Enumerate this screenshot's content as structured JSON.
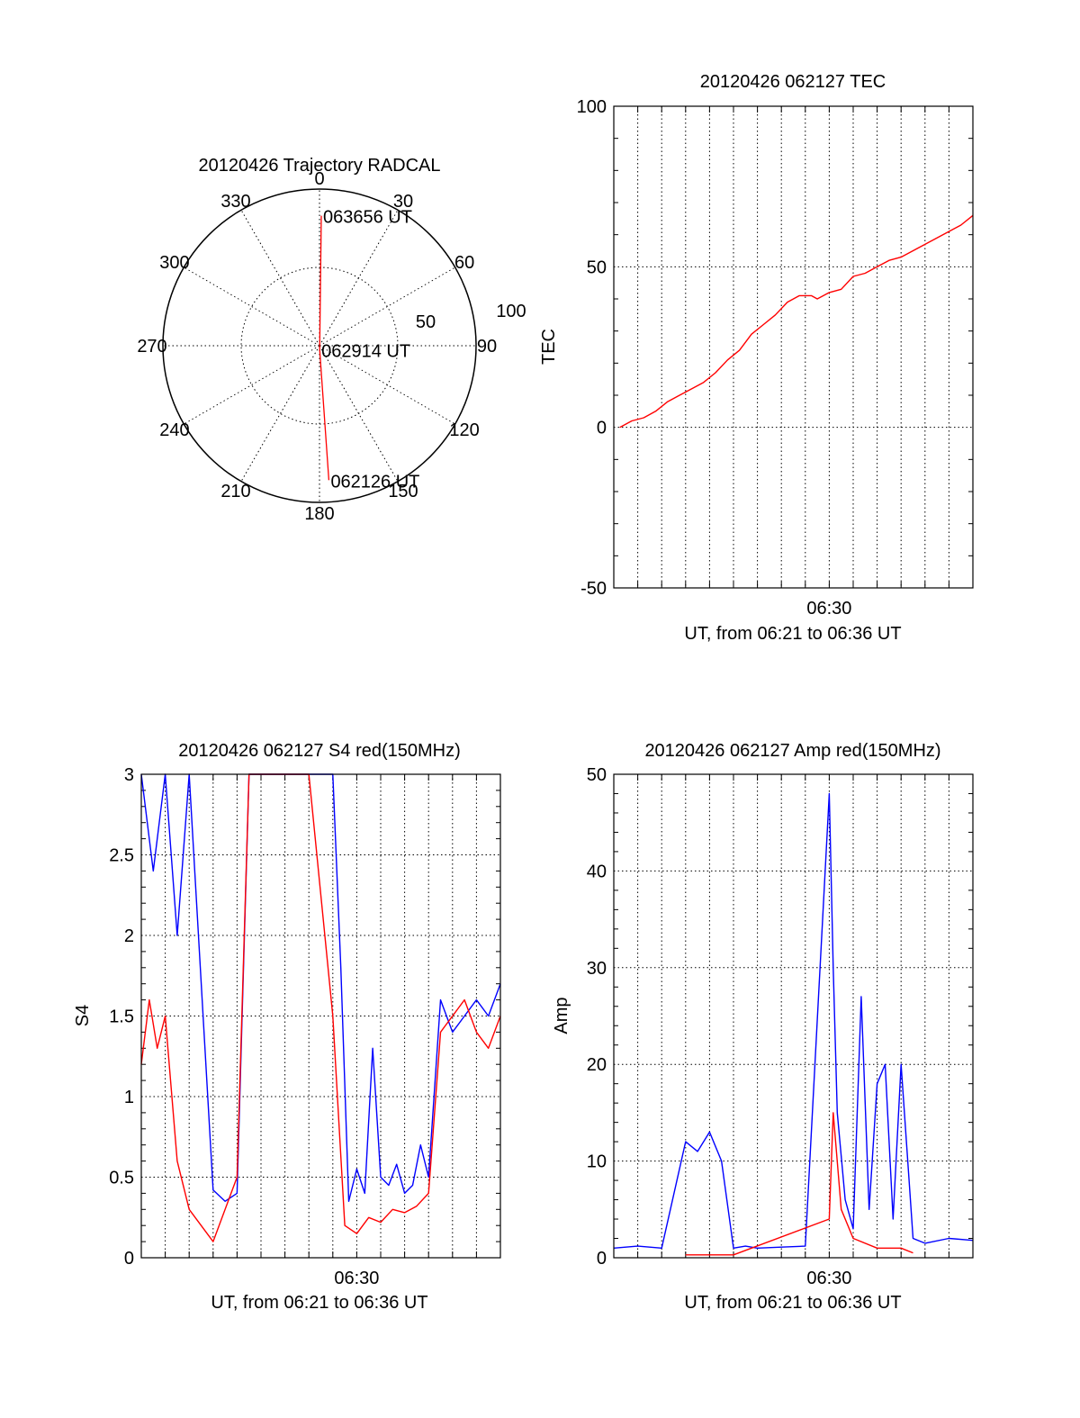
{
  "chart_data": [
    {
      "type": "polar",
      "title": "20120426 Trajectory RADCAL",
      "angle_labels": [
        "0",
        "30",
        "60",
        "90",
        "120",
        "150",
        "180",
        "210",
        "240",
        "270",
        "300",
        "330"
      ],
      "radial_labels": [
        "50",
        "100"
      ],
      "rlim": [
        0,
        100
      ],
      "grid": true,
      "series": [
        {
          "color": "#ff0000",
          "points": [
            {
              "az": 0.8,
              "r": 83
            },
            {
              "az": 178.0,
              "r": 2.5
            },
            {
              "az": 176.0,
              "r": 86
            }
          ]
        }
      ],
      "annotations": [
        {
          "text": "063656 UT",
          "az": 0.8,
          "r": 83
        },
        {
          "text": "062914 UT",
          "az": 178.0,
          "r": 2.5
        },
        {
          "text": "062126 UT",
          "az": 176.0,
          "r": 86
        }
      ]
    },
    {
      "type": "line",
      "title": "20120426 062127 TEC",
      "xlabel": "UT, from 06:21 to 06:36 UT",
      "ylabel": "TEC",
      "xlim": [
        "06:21",
        "06:36"
      ],
      "ylim": [
        -50,
        100
      ],
      "xticks": [
        {
          "x": "06:30",
          "label": "06:30"
        }
      ],
      "yticks": [
        "-50",
        "0",
        "50",
        "100"
      ],
      "grid": true,
      "series": [
        {
          "color": "#ff0000",
          "x": [
            "06:21:15",
            "06:21:45",
            "06:22:15",
            "06:22:45",
            "06:23:15",
            "06:23:45",
            "06:24:15",
            "06:24:45",
            "06:25:15",
            "06:25:45",
            "06:26:15",
            "06:26:45",
            "06:27:15",
            "06:27:45",
            "06:28:15",
            "06:28:45",
            "06:29:15",
            "06:29:30",
            "06:30:00",
            "06:30:30",
            "06:31:00",
            "06:31:30",
            "06:32:00",
            "06:32:30",
            "06:33:00",
            "06:33:30",
            "06:34:00",
            "06:34:30",
            "06:35:00",
            "06:35:30",
            "06:36:00"
          ],
          "y": [
            0,
            2,
            3,
            5,
            8,
            10,
            12,
            14,
            17,
            21,
            24,
            29,
            32,
            35,
            39,
            41,
            41,
            40,
            42,
            43,
            47,
            48,
            50,
            52,
            53,
            55,
            57,
            59,
            61,
            63,
            66
          ]
        }
      ]
    },
    {
      "type": "line",
      "title": "20120426 062127 S4 red(150MHz)",
      "xlabel": "UT, from 06:21 to 06:36 UT",
      "ylabel": "S4",
      "xlim": [
        "06:21",
        "06:36"
      ],
      "ylim": [
        0,
        3
      ],
      "xticks": [
        {
          "x": "06:30",
          "label": "06:30"
        }
      ],
      "yticks": [
        "0",
        "0.5",
        "1",
        "1.5",
        "2",
        "2.5",
        "3"
      ],
      "grid": true,
      "series": [
        {
          "color": "#0000ff",
          "x": [
            "06:21:00",
            "06:21:30",
            "06:22:00",
            "06:22:30",
            "06:23:00",
            "06:24:00",
            "06:24:30",
            "06:25:00",
            "06:25:30",
            "06:26:00",
            "06:27:00",
            "06:28:00",
            "06:29:00",
            "06:29:20",
            "06:29:40",
            "06:30:00",
            "06:30:20",
            "06:30:40",
            "06:31:00",
            "06:31:20",
            "06:31:40",
            "06:32:00",
            "06:32:20",
            "06:32:40",
            "06:33:00",
            "06:33:30",
            "06:34:00",
            "06:34:30",
            "06:35:00",
            "06:35:30",
            "06:36:00"
          ],
          "y": [
            3,
            2.4,
            3,
            2.0,
            3,
            0.42,
            0.35,
            0.4,
            3,
            3,
            3,
            3,
            3,
            1.8,
            0.35,
            0.55,
            0.4,
            1.3,
            0.5,
            0.45,
            0.58,
            0.4,
            0.45,
            0.7,
            0.5,
            1.6,
            1.4,
            1.5,
            1.6,
            1.5,
            1.7
          ]
        },
        {
          "color": "#ff0000",
          "x": [
            "06:21:00",
            "06:21:20",
            "06:21:40",
            "06:22:00",
            "06:22:30",
            "06:23:00",
            "06:24:00",
            "06:25:00",
            "06:25:30",
            "06:26:00",
            "06:27:00",
            "06:28:00",
            "06:29:00",
            "06:29:30",
            "06:30:00",
            "06:30:30",
            "06:31:00",
            "06:31:30",
            "06:32:00",
            "06:32:30",
            "06:33:00",
            "06:33:30",
            "06:34:00",
            "06:34:30",
            "06:35:00",
            "06:35:30",
            "06:36:00"
          ],
          "y": [
            1.2,
            1.6,
            1.3,
            1.5,
            0.6,
            0.3,
            0.1,
            0.5,
            3,
            3,
            3,
            3,
            1.5,
            0.2,
            0.15,
            0.25,
            0.22,
            0.3,
            0.28,
            0.32,
            0.4,
            1.4,
            1.5,
            1.6,
            1.4,
            1.3,
            1.5
          ]
        }
      ]
    },
    {
      "type": "line",
      "title": "20120426 062127 Amp red(150MHz)",
      "xlabel": "UT, from 06:21 to 06:36 UT",
      "ylabel": "Amp",
      "xlim": [
        "06:21",
        "06:36"
      ],
      "ylim": [
        0,
        50
      ],
      "xticks": [
        {
          "x": "06:30",
          "label": "06:30"
        }
      ],
      "yticks": [
        "0",
        "10",
        "20",
        "30",
        "40",
        "50"
      ],
      "grid": true,
      "series": [
        {
          "color": "#0000ff",
          "x": [
            "06:21:00",
            "06:22:00",
            "06:23:00",
            "06:24:00",
            "06:24:30",
            "06:25:00",
            "06:25:30",
            "06:26:00",
            "06:26:30",
            "06:27:00",
            "06:28:00",
            "06:29:00",
            "06:30:00",
            "06:30:10",
            "06:30:20",
            "06:30:40",
            "06:31:00",
            "06:31:20",
            "06:31:40",
            "06:32:00",
            "06:32:20",
            "06:32:40",
            "06:33:00",
            "06:33:20",
            "06:33:30",
            "06:34:00",
            "06:35:00",
            "06:36:00"
          ],
          "y": [
            1,
            1.2,
            1.0,
            12,
            11,
            13,
            10,
            1,
            1.2,
            1,
            1.1,
            1.2,
            48,
            30,
            15,
            6,
            3,
            27,
            5,
            18,
            20,
            4,
            20,
            8,
            2,
            1.5,
            2,
            1.8
          ]
        },
        {
          "color": "#ff0000",
          "x": [
            "06:24:00",
            "06:25:00",
            "06:26:00",
            "06:30:00",
            "06:30:10",
            "06:30:30",
            "06:31:00",
            "06:32:00",
            "06:33:00",
            "06:33:30"
          ],
          "y": [
            0.3,
            0.3,
            0.3,
            4,
            15,
            5,
            2,
            1,
            1,
            0.5
          ]
        }
      ]
    }
  ]
}
